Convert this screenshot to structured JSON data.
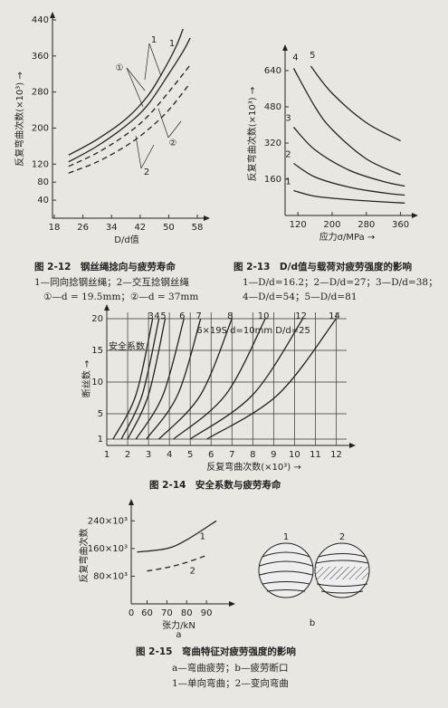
{
  "chart_data": [
    {
      "type": "line",
      "title": "图 2-12　钢丝绳捻向与疲劳寿命",
      "notes": [
        "1—同向捻钢丝绳；2—交互捻钢丝绳",
        "①—d = 19.5mm；②—d = 37mm"
      ],
      "y_label": "反复弯曲次数(×10³) →",
      "x_label": "D/d值",
      "xlim": [
        17.5,
        59
      ],
      "ylim": [
        0,
        440
      ],
      "xticks": [
        18,
        26,
        34,
        42,
        50,
        58
      ],
      "yticks": [
        40,
        80,
        120,
        200,
        280,
        360,
        440
      ],
      "annotations": [
        "1",
        "1",
        "①",
        "②",
        "2"
      ],
      "series": [
        {
          "color": "#222",
          "dash": false,
          "x": [
            22,
            30,
            38,
            44,
            48,
            52,
            54
          ],
          "values": [
            140,
            175,
            220,
            270,
            320,
            380,
            420
          ]
        },
        {
          "color": "#222",
          "dash": false,
          "x": [
            22,
            30,
            38,
            44,
            50,
            54,
            56
          ],
          "values": [
            125,
            160,
            205,
            250,
            320,
            370,
            400
          ]
        },
        {
          "color": "#222",
          "dash": true,
          "x": [
            22,
            30,
            38,
            44,
            50,
            56
          ],
          "values": [
            115,
            145,
            185,
            225,
            280,
            340
          ]
        },
        {
          "color": "#222",
          "dash": true,
          "x": [
            22,
            30,
            38,
            44,
            50,
            56
          ],
          "values": [
            100,
            125,
            160,
            195,
            240,
            300
          ]
        }
      ]
    },
    {
      "type": "line",
      "title": "图 2-13　D/d值与载荷对疲劳强度的影响",
      "notes": [
        "1—D/d=16.2；2—D/d=27；3—D/d=38；",
        "4—D/d=54；5—D/d=81"
      ],
      "y_label": "反复弯曲次数(×10³) →",
      "x_label": "应力σ/MPa →",
      "xlim": [
        90,
        380
      ],
      "ylim": [
        0,
        720
      ],
      "xticks": [
        120,
        200,
        280,
        360
      ],
      "yticks": [
        160,
        320,
        480,
        640
      ],
      "series": [
        {
          "name": "1",
          "color": "#222",
          "dash": false,
          "x": [
            110,
            160,
            240,
            320,
            370
          ],
          "values": [
            110,
            85,
            70,
            60,
            55
          ]
        },
        {
          "name": "2",
          "color": "#222",
          "dash": false,
          "x": [
            110,
            160,
            240,
            320,
            370
          ],
          "values": [
            230,
            170,
            125,
            100,
            90
          ]
        },
        {
          "name": "3",
          "color": "#222",
          "dash": false,
          "x": [
            110,
            160,
            240,
            320,
            370
          ],
          "values": [
            390,
            290,
            200,
            150,
            130
          ]
        },
        {
          "name": "4",
          "color": "#222",
          "dash": false,
          "x": [
            110,
            160,
            200,
            280,
            360
          ],
          "values": [
            650,
            480,
            380,
            250,
            180
          ]
        },
        {
          "name": "5",
          "color": "#222",
          "dash": false,
          "x": [
            150,
            200,
            280,
            360
          ],
          "values": [
            660,
            540,
            410,
            330
          ]
        }
      ]
    },
    {
      "type": "line",
      "title": "图 2-14　安全系数与疲劳寿命",
      "y_label": "断丝数 →",
      "x_label": "反复弯曲次数(×10³) →",
      "annotations": [
        "安全系数",
        "6×19S  d=10mm  D/d=25"
      ],
      "xlim": [
        1,
        12.5
      ],
      "ylim": [
        0,
        21
      ],
      "xticks": [
        1,
        2,
        3,
        4,
        5,
        6,
        7,
        8,
        9,
        10,
        11,
        12
      ],
      "yticks": [
        1,
        5,
        10,
        15,
        20
      ],
      "grid": true,
      "series": [
        {
          "name": "3",
          "color": "#222",
          "dash": false,
          "x": [
            1.3,
            2.4,
            3.2
          ],
          "values": [
            1,
            8,
            20
          ]
        },
        {
          "name": "4",
          "color": "#222",
          "dash": false,
          "x": [
            1.7,
            2.7,
            3.5
          ],
          "values": [
            1,
            8,
            20
          ]
        },
        {
          "name": "5",
          "color": "#222",
          "dash": false,
          "x": [
            2.0,
            3.0,
            3.8
          ],
          "values": [
            1,
            8,
            20
          ]
        },
        {
          "name": "6",
          "color": "#222",
          "dash": false,
          "x": [
            2.4,
            3.7,
            4.7
          ],
          "values": [
            1,
            8,
            20
          ]
        },
        {
          "name": "7",
          "color": "#222",
          "dash": false,
          "x": [
            2.9,
            4.4,
            5.5
          ],
          "values": [
            1,
            8,
            20
          ]
        },
        {
          "name": "8",
          "color": "#222",
          "dash": false,
          "x": [
            3.5,
            5.5,
            7.0
          ],
          "values": [
            1,
            8,
            20
          ]
        },
        {
          "name": "10",
          "color": "#222",
          "dash": false,
          "x": [
            4.2,
            6.7,
            8.6
          ],
          "values": [
            1,
            8,
            20
          ]
        },
        {
          "name": "12",
          "color": "#222",
          "dash": false,
          "x": [
            5.0,
            8.0,
            10.4
          ],
          "values": [
            1,
            8,
            20
          ]
        },
        {
          "name": "14",
          "color": "#222",
          "dash": false,
          "x": [
            5.8,
            9.2,
            12.0
          ],
          "values": [
            1,
            8,
            20
          ]
        }
      ]
    },
    {
      "type": "line",
      "title": "图 2-15　弯曲特征对疲劳强度的影响",
      "notes": [
        "a—弯曲疲劳；b—疲劳断口",
        "1—单向弯曲；2—变向弯曲"
      ],
      "y_label": "反复弯曲次数",
      "x_label": "张力/kN",
      "panel_labels": [
        "a",
        "b"
      ],
      "origin_label": "0",
      "xlim": [
        52,
        100
      ],
      "ylim": [
        0,
        280000
      ],
      "xticks": [
        60,
        70,
        80,
        90
      ],
      "yticks": [
        {
          "value": 80000,
          "label": "80×10³"
        },
        {
          "value": 160000,
          "label": "160×10³"
        },
        {
          "value": 240000,
          "label": "240×10³"
        }
      ],
      "series": [
        {
          "name": "1",
          "color": "#222",
          "dash": false,
          "x": [
            55,
            70,
            80,
            95
          ],
          "values": [
            150000,
            160000,
            185000,
            240000
          ]
        },
        {
          "name": "2",
          "color": "#222",
          "dash": true,
          "x": [
            60,
            70,
            80,
            90
          ],
          "values": [
            95000,
            105000,
            120000,
            140000
          ]
        }
      ],
      "fracture_labels": [
        "1",
        "2"
      ]
    }
  ]
}
